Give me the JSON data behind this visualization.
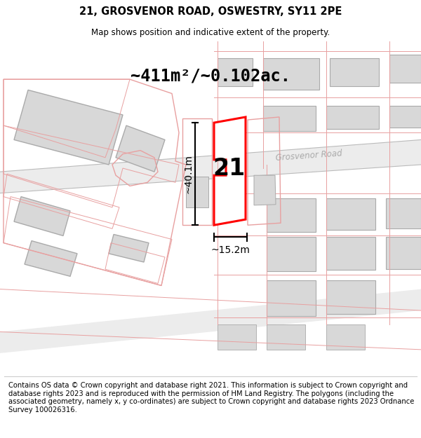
{
  "title": "21, GROSVENOR ROAD, OSWESTRY, SY11 2PE",
  "subtitle": "Map shows position and indicative extent of the property.",
  "area_text": "~411m²/~0.102ac.",
  "road_label": "Grosvenor Road",
  "number_label": "21",
  "dim_vertical": "~40.1m",
  "dim_horizontal": "~15.2m",
  "footer_text": "Contains OS data © Crown copyright and database right 2021. This information is subject to Crown copyright and database rights 2023 and is reproduced with the permission of HM Land Registry. The polygons (including the associated geometry, namely x, y co-ordinates) are subject to Crown copyright and database rights 2023 Ordnance Survey 100026316.",
  "bg_color": "#ffffff",
  "map_bg": "#ffffff",
  "highlight_color": "#ff0000",
  "road_color": "#e8e8e8",
  "building_fc": "#d8d8d8",
  "building_ec": "#c0a0a0",
  "plot_ec": "#e8a0a0",
  "title_fontsize": 10.5,
  "subtitle_fontsize": 8.5,
  "footer_fontsize": 7.2,
  "area_fontsize": 17,
  "road_label_fontsize": 8.5,
  "number_fontsize": 24,
  "dim_fontsize": 10
}
